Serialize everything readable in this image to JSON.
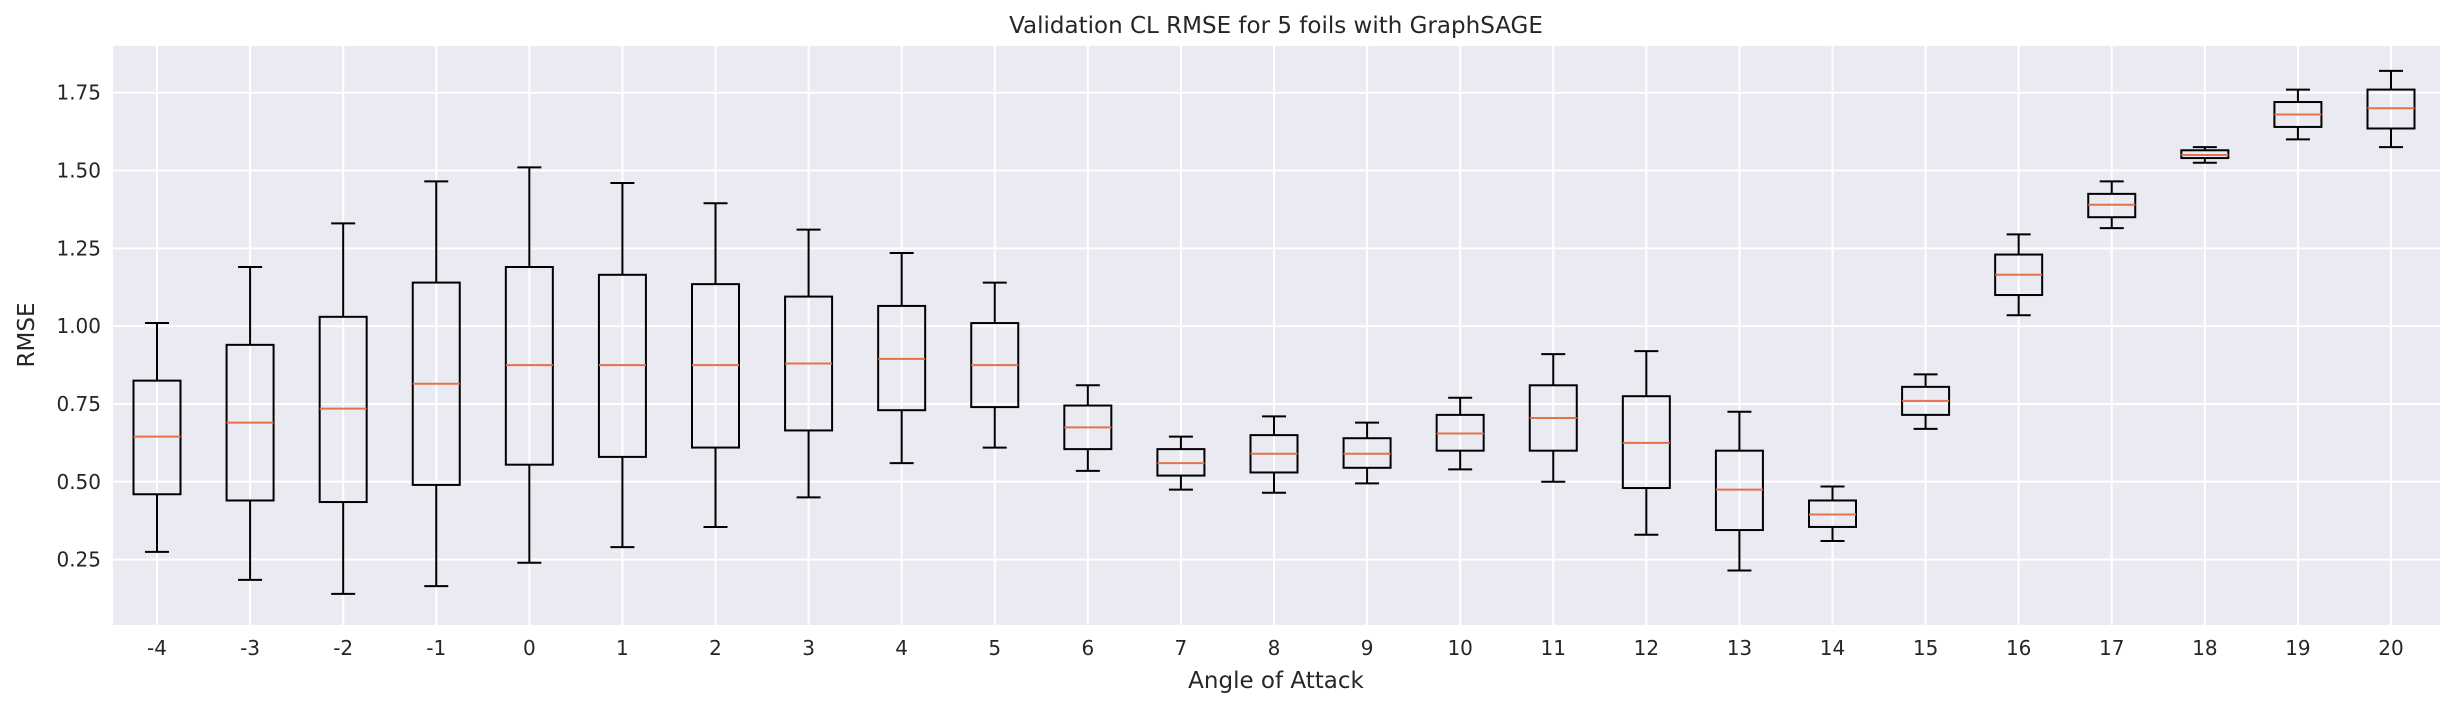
{
  "chart_data": {
    "type": "box",
    "title": "Validation CL RMSE for 5 foils with GraphSAGE",
    "xlabel": "Angle of Attack",
    "ylabel": "RMSE",
    "ylim": [
      0.04,
      1.9
    ],
    "yticks": [
      0.25,
      0.5,
      0.75,
      1.0,
      1.25,
      1.5,
      1.75
    ],
    "ytick_labels": [
      "0.25",
      "0.50",
      "0.75",
      "1.00",
      "1.25",
      "1.50",
      "1.75"
    ],
    "grid": true,
    "background": "#eaeaf2",
    "box_color": "#000000",
    "median_color": "#e5724b",
    "categories": [
      "-4",
      "-3",
      "-2",
      "-1",
      "0",
      "1",
      "2",
      "3",
      "4",
      "5",
      "6",
      "7",
      "8",
      "9",
      "10",
      "11",
      "12",
      "13",
      "14",
      "15",
      "16",
      "17",
      "18",
      "19",
      "20"
    ],
    "boxes": [
      {
        "whisker_low": 0.275,
        "q1": 0.46,
        "median": 0.645,
        "q3": 0.825,
        "whisker_high": 1.01
      },
      {
        "whisker_low": 0.185,
        "q1": 0.44,
        "median": 0.69,
        "q3": 0.94,
        "whisker_high": 1.19
      },
      {
        "whisker_low": 0.14,
        "q1": 0.435,
        "median": 0.735,
        "q3": 1.03,
        "whisker_high": 1.33
      },
      {
        "whisker_low": 0.165,
        "q1": 0.49,
        "median": 0.815,
        "q3": 1.14,
        "whisker_high": 1.465
      },
      {
        "whisker_low": 0.24,
        "q1": 0.555,
        "median": 0.875,
        "q3": 1.19,
        "whisker_high": 1.51
      },
      {
        "whisker_low": 0.29,
        "q1": 0.58,
        "median": 0.875,
        "q3": 1.165,
        "whisker_high": 1.46
      },
      {
        "whisker_low": 0.355,
        "q1": 0.61,
        "median": 0.875,
        "q3": 1.135,
        "whisker_high": 1.395
      },
      {
        "whisker_low": 0.45,
        "q1": 0.665,
        "median": 0.88,
        "q3": 1.095,
        "whisker_high": 1.31
      },
      {
        "whisker_low": 0.56,
        "q1": 0.73,
        "median": 0.895,
        "q3": 1.065,
        "whisker_high": 1.235
      },
      {
        "whisker_low": 0.61,
        "q1": 0.74,
        "median": 0.875,
        "q3": 1.01,
        "whisker_high": 1.14
      },
      {
        "whisker_low": 0.535,
        "q1": 0.605,
        "median": 0.675,
        "q3": 0.745,
        "whisker_high": 0.81
      },
      {
        "whisker_low": 0.475,
        "q1": 0.52,
        "median": 0.56,
        "q3": 0.605,
        "whisker_high": 0.645
      },
      {
        "whisker_low": 0.465,
        "q1": 0.53,
        "median": 0.59,
        "q3": 0.65,
        "whisker_high": 0.71
      },
      {
        "whisker_low": 0.495,
        "q1": 0.545,
        "median": 0.59,
        "q3": 0.64,
        "whisker_high": 0.69
      },
      {
        "whisker_low": 0.54,
        "q1": 0.6,
        "median": 0.655,
        "q3": 0.715,
        "whisker_high": 0.77
      },
      {
        "whisker_low": 0.5,
        "q1": 0.6,
        "median": 0.705,
        "q3": 0.81,
        "whisker_high": 0.91
      },
      {
        "whisker_low": 0.33,
        "q1": 0.48,
        "median": 0.625,
        "q3": 0.775,
        "whisker_high": 0.92
      },
      {
        "whisker_low": 0.215,
        "q1": 0.345,
        "median": 0.475,
        "q3": 0.6,
        "whisker_high": 0.725
      },
      {
        "whisker_low": 0.31,
        "q1": 0.355,
        "median": 0.395,
        "q3": 0.44,
        "whisker_high": 0.485
      },
      {
        "whisker_low": 0.67,
        "q1": 0.715,
        "median": 0.76,
        "q3": 0.805,
        "whisker_high": 0.845
      },
      {
        "whisker_low": 1.035,
        "q1": 1.1,
        "median": 1.165,
        "q3": 1.23,
        "whisker_high": 1.295
      },
      {
        "whisker_low": 1.315,
        "q1": 1.35,
        "median": 1.39,
        "q3": 1.425,
        "whisker_high": 1.465
      },
      {
        "whisker_low": 1.525,
        "q1": 1.54,
        "median": 1.55,
        "q3": 1.565,
        "whisker_high": 1.575
      },
      {
        "whisker_low": 1.6,
        "q1": 1.64,
        "median": 1.68,
        "q3": 1.72,
        "whisker_high": 1.76
      },
      {
        "whisker_low": 1.575,
        "q1": 1.635,
        "median": 1.7,
        "q3": 1.76,
        "whisker_high": 1.82
      }
    ]
  }
}
